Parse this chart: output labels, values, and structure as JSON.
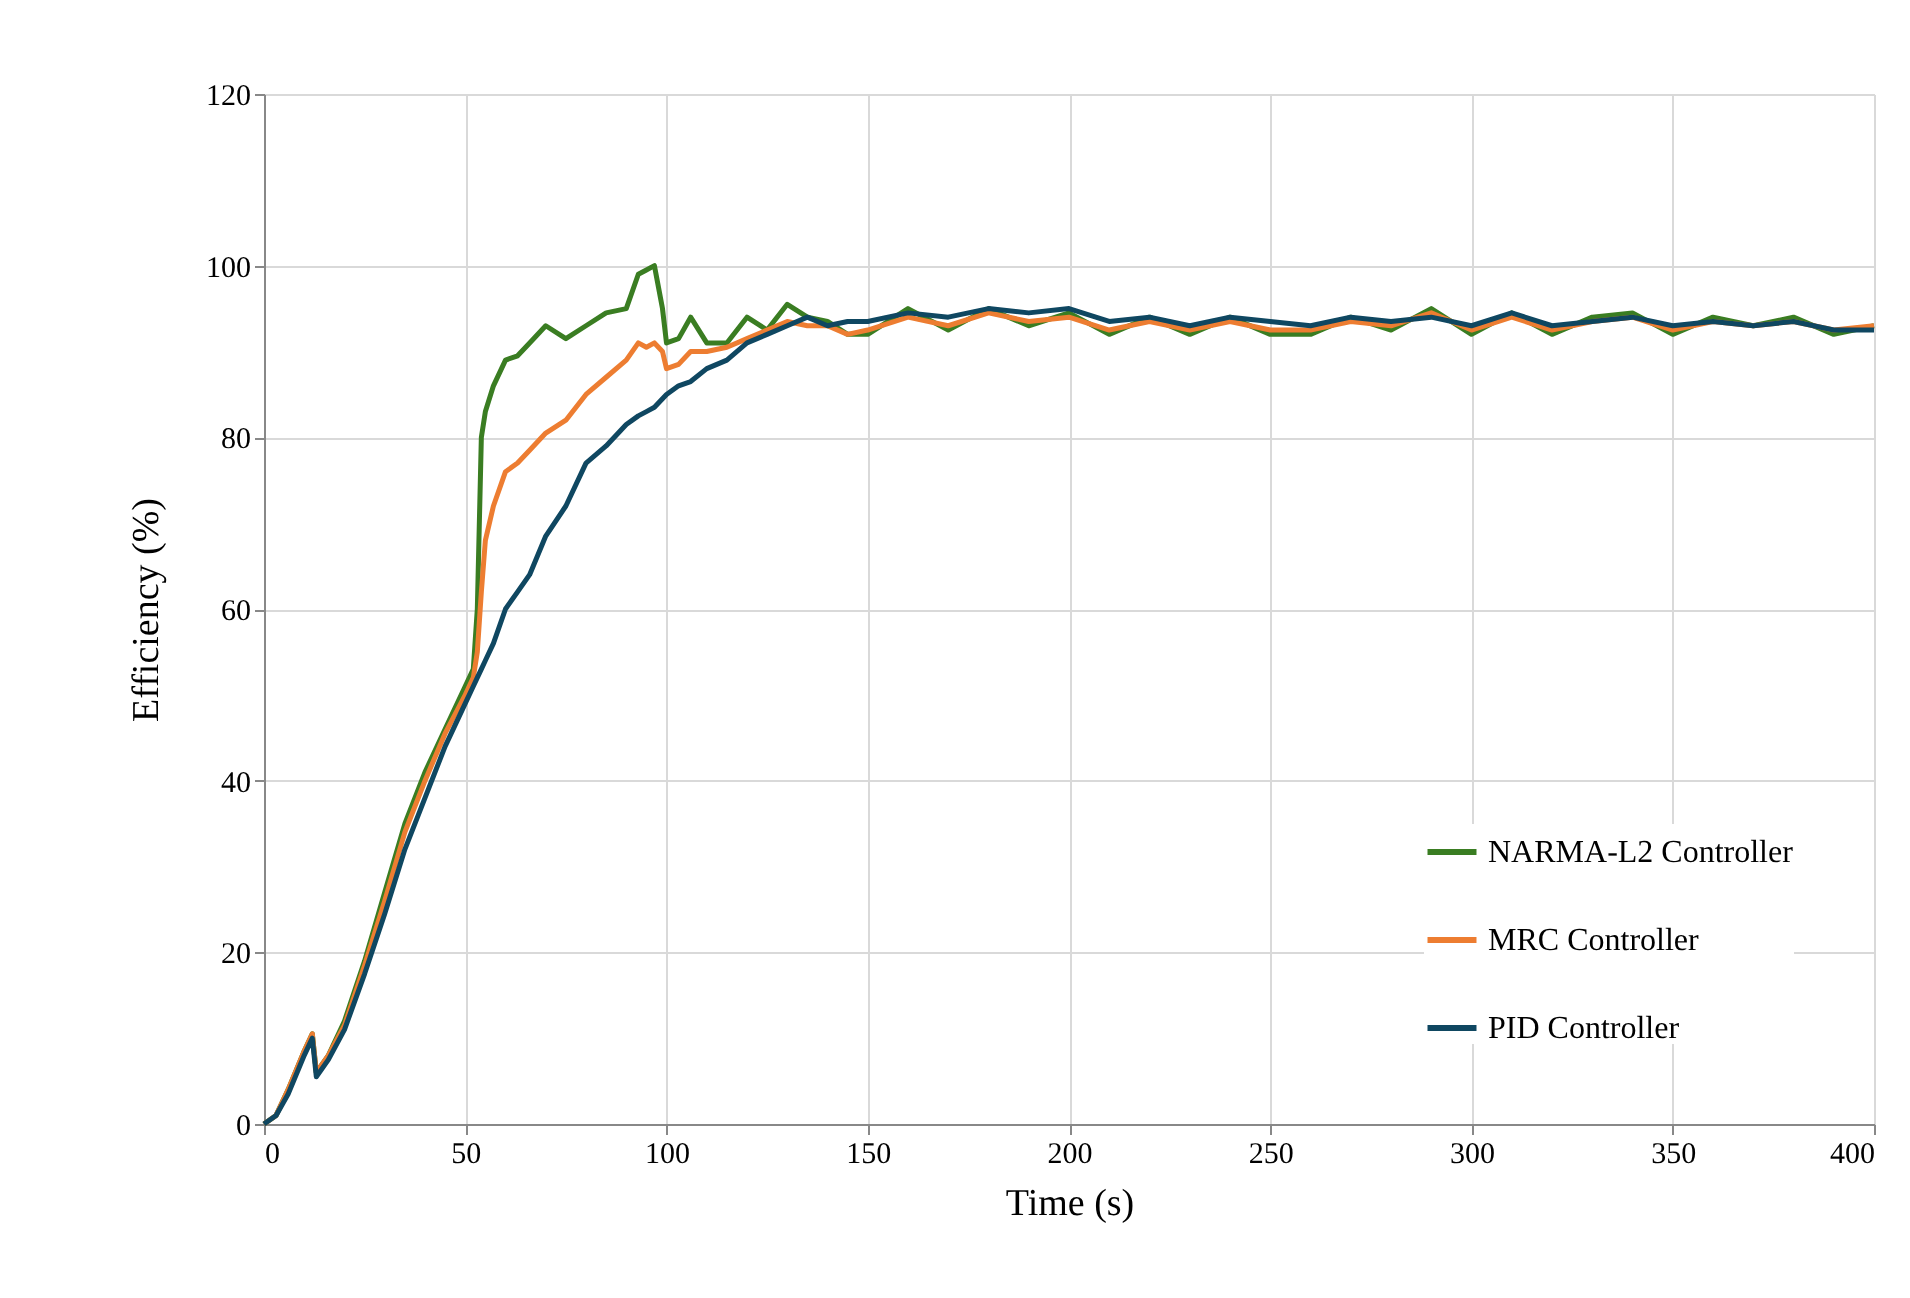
{
  "chart_data": {
    "type": "line",
    "xlabel": "Time (s)",
    "ylabel": "Efficiency (%)",
    "x": [
      0,
      3,
      6,
      10,
      12,
      13,
      16,
      20,
      25,
      30,
      35,
      40,
      45,
      50,
      52,
      53,
      54,
      55,
      57,
      60,
      63,
      66,
      70,
      75,
      80,
      85,
      90,
      93,
      95,
      97,
      99,
      100,
      103,
      106,
      110,
      115,
      120,
      125,
      130,
      135,
      140,
      145,
      150,
      160,
      170,
      180,
      190,
      200,
      210,
      220,
      230,
      240,
      250,
      260,
      270,
      280,
      290,
      300,
      310,
      320,
      330,
      340,
      350,
      360,
      370,
      380,
      390,
      400
    ],
    "series": [
      {
        "name": "NARMA-L2 Controller",
        "color": "#3a7d22",
        "values": [
          0,
          1,
          4,
          8.5,
          10.5,
          6,
          8,
          12,
          19,
          27,
          35,
          41,
          46,
          51,
          53,
          60,
          80,
          83,
          86,
          89,
          89.5,
          91,
          93,
          91.5,
          93,
          94.5,
          95,
          99,
          99.5,
          100,
          95,
          91,
          91.5,
          94,
          91,
          91,
          94,
          92.5,
          95.5,
          94,
          93.5,
          92,
          92,
          95,
          92.5,
          95,
          93,
          94.5,
          92,
          94,
          92,
          94,
          92,
          92,
          94,
          92.5,
          95,
          92,
          94.5,
          92,
          94,
          94.5,
          92,
          94,
          93,
          94,
          92,
          93
        ]
      },
      {
        "name": "MRC Controller",
        "color": "#ed7d31",
        "values": [
          0,
          1,
          4,
          8.5,
          10.5,
          6,
          8,
          11.5,
          18.5,
          26,
          34,
          40,
          45.5,
          50,
          52,
          55,
          62,
          68,
          72,
          76,
          77,
          78.5,
          80.5,
          82,
          85,
          87,
          89,
          91,
          90.5,
          91,
          90,
          88,
          88.5,
          90,
          90,
          90.5,
          91.5,
          92.5,
          93.5,
          93,
          93,
          92,
          92.5,
          94,
          93,
          94.5,
          93.5,
          94,
          92.5,
          93.5,
          92.5,
          93.5,
          92.5,
          92.5,
          93.5,
          93,
          94.5,
          92.5,
          94,
          92.5,
          93.5,
          94,
          92.5,
          93.5,
          93,
          93.5,
          92.5,
          93
        ]
      },
      {
        "name": "PID Controller",
        "color": "#0f4761",
        "values": [
          0,
          1,
          3.5,
          8,
          10,
          5.5,
          7.5,
          11,
          17.5,
          24.5,
          32,
          38,
          44,
          49,
          51,
          52,
          53,
          54,
          56,
          60,
          62,
          64,
          68.5,
          72,
          77,
          79,
          81.5,
          82.5,
          83,
          83.5,
          84.5,
          85,
          86,
          86.5,
          88,
          89,
          91,
          92,
          93,
          94,
          93,
          93.5,
          93.5,
          94.5,
          94,
          95,
          94.5,
          95,
          93.5,
          94,
          93,
          94,
          93.5,
          93,
          94,
          93.5,
          94,
          93,
          94.5,
          93,
          93.5,
          94,
          93,
          93.5,
          93,
          93.5,
          92.5,
          92.5
        ]
      }
    ],
    "xlim": [
      0,
      400
    ],
    "xticks": [
      0,
      50,
      100,
      150,
      200,
      250,
      300,
      350,
      400
    ],
    "ylim": [
      0,
      120
    ],
    "yticks": [
      0,
      20,
      40,
      60,
      80,
      100,
      120
    ],
    "grid": true,
    "legend": "bottom right",
    "line_style": "solid",
    "marker": "none"
  }
}
